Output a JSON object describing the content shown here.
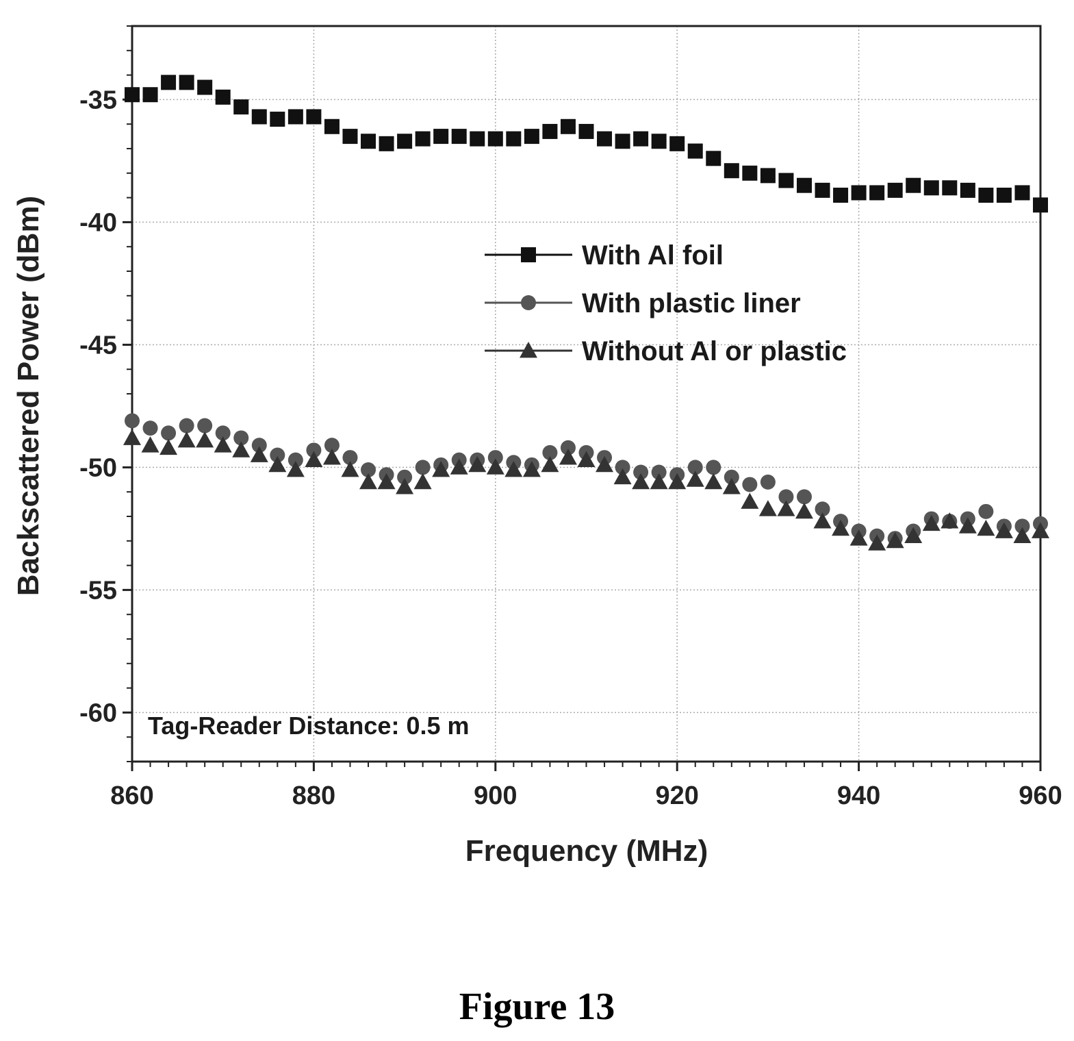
{
  "chart_data": {
    "type": "scatter",
    "xlabel": "Frequency (MHz)",
    "ylabel": "Backscattered Power (dBm)",
    "xlim": [
      860,
      960
    ],
    "ylim": [
      -62,
      -32
    ],
    "xticks": [
      860,
      880,
      900,
      920,
      940,
      960
    ],
    "yticks": [
      -35,
      -40,
      -45,
      -50,
      -55,
      -60
    ],
    "grid": true,
    "legend_position": "center-right",
    "annotation": "Tag-Reader Distance: 0.5 m",
    "x": [
      860,
      862,
      864,
      866,
      868,
      870,
      872,
      874,
      876,
      878,
      880,
      882,
      884,
      886,
      888,
      890,
      892,
      894,
      896,
      898,
      900,
      902,
      904,
      906,
      908,
      910,
      912,
      914,
      916,
      918,
      920,
      922,
      924,
      926,
      928,
      930,
      932,
      934,
      936,
      938,
      940,
      942,
      944,
      946,
      948,
      950,
      952,
      954,
      956,
      958,
      960
    ],
    "series": [
      {
        "name": "With Al foil",
        "marker": "square",
        "color": "#111111",
        "values": [
          -34.8,
          -34.8,
          -34.3,
          -34.3,
          -34.5,
          -34.9,
          -35.3,
          -35.7,
          -35.8,
          -35.7,
          -35.7,
          -36.1,
          -36.5,
          -36.7,
          -36.8,
          -36.7,
          -36.6,
          -36.5,
          -36.5,
          -36.6,
          -36.6,
          -36.6,
          -36.5,
          -36.3,
          -36.1,
          -36.3,
          -36.6,
          -36.7,
          -36.6,
          -36.7,
          -36.8,
          -37.1,
          -37.4,
          -37.9,
          -38.0,
          -38.1,
          -38.3,
          -38.5,
          -38.7,
          -38.9,
          -38.8,
          -38.8,
          -38.7,
          -38.5,
          -38.6,
          -38.6,
          -38.7,
          -38.9,
          -38.9,
          -38.8,
          -39.3
        ]
      },
      {
        "name": "With plastic liner",
        "marker": "circle",
        "color": "#555555",
        "values": [
          -48.1,
          -48.4,
          -48.6,
          -48.3,
          -48.3,
          -48.6,
          -48.8,
          -49.1,
          -49.5,
          -49.7,
          -49.3,
          -49.1,
          -49.6,
          -50.1,
          -50.3,
          -50.4,
          -50.0,
          -49.9,
          -49.7,
          -49.7,
          -49.6,
          -49.8,
          -49.9,
          -49.4,
          -49.2,
          -49.4,
          -49.6,
          -50.0,
          -50.2,
          -50.2,
          -50.3,
          -50.0,
          -50.0,
          -50.4,
          -50.7,
          -50.6,
          -51.2,
          -51.2,
          -51.7,
          -52.2,
          -52.6,
          -52.8,
          -52.9,
          -52.6,
          -52.1,
          -52.2,
          -52.1,
          -51.8,
          -52.4,
          -52.4,
          -52.3
        ]
      },
      {
        "name": "Without Al or plastic",
        "marker": "triangle",
        "color": "#333333",
        "values": [
          -48.8,
          -49.1,
          -49.2,
          -48.9,
          -48.9,
          -49.1,
          -49.3,
          -49.5,
          -49.9,
          -50.1,
          -49.7,
          -49.6,
          -50.1,
          -50.6,
          -50.6,
          -50.8,
          -50.6,
          -50.1,
          -50.0,
          -49.9,
          -50.0,
          -50.1,
          -50.1,
          -49.9,
          -49.6,
          -49.7,
          -49.9,
          -50.4,
          -50.6,
          -50.6,
          -50.6,
          -50.5,
          -50.6,
          -50.8,
          -51.4,
          -51.7,
          -51.7,
          -51.8,
          -52.2,
          -52.5,
          -52.9,
          -53.1,
          -53.0,
          -52.8,
          -52.3,
          -52.2,
          -52.4,
          -52.5,
          -52.6,
          -52.8,
          -52.6
        ]
      }
    ]
  },
  "figure_caption": "Figure 13"
}
